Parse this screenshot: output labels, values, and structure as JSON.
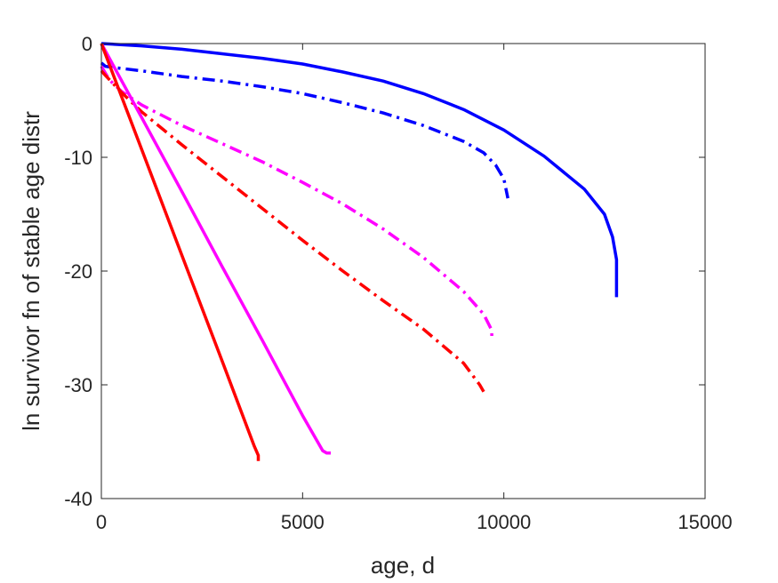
{
  "chart_data": {
    "type": "line",
    "title": "",
    "xlabel": "age, d",
    "ylabel": "ln survivor fn of stable age distr",
    "xlim": [
      0,
      15000
    ],
    "ylim": [
      -40,
      0
    ],
    "xticks": [
      0,
      5000,
      10000,
      15000
    ],
    "yticks": [
      0,
      -10,
      -20,
      -30,
      -40
    ],
    "grid": false,
    "box": true,
    "legend": "none",
    "series": [
      {
        "color": "#0000ff",
        "style": "solid",
        "x": [
          0,
          1000,
          2000,
          3000,
          4000,
          5000,
          6000,
          7000,
          8000,
          9000,
          10000,
          11000,
          12000,
          12500,
          12700,
          12800,
          12800
        ],
        "y": [
          0,
          -0.2,
          -0.5,
          -0.9,
          -1.3,
          -1.8,
          -2.5,
          -3.3,
          -4.4,
          -5.8,
          -7.6,
          -9.9,
          -12.8,
          -15.0,
          -17.0,
          -19.0,
          -22.3
        ]
      },
      {
        "color": "#0000ff",
        "style": "dashdot",
        "x": [
          0,
          100,
          300,
          1000,
          2000,
          3000,
          4000,
          5000,
          6000,
          7000,
          8000,
          9000,
          9500,
          9800,
          10000,
          10100
        ],
        "y": [
          -1.7,
          -2.0,
          -2.1,
          -2.4,
          -2.9,
          -3.3,
          -3.8,
          -4.4,
          -5.2,
          -6.1,
          -7.2,
          -8.6,
          -9.6,
          -10.7,
          -11.9,
          -13.6
        ]
      },
      {
        "color": "#ff00ff",
        "style": "dashdot",
        "x": [
          0,
          200,
          500,
          1000,
          2000,
          3000,
          4000,
          5000,
          6000,
          7000,
          8000,
          9000,
          9500,
          9700,
          9700
        ],
        "y": [
          -2.0,
          -3.2,
          -4.2,
          -5.4,
          -7.2,
          -8.8,
          -10.4,
          -12.2,
          -14.1,
          -16.3,
          -18.8,
          -21.8,
          -23.8,
          -25.2,
          -26.0
        ]
      },
      {
        "color": "#ff0000",
        "style": "dashdot",
        "x": [
          0,
          100,
          500,
          1000,
          2000,
          3000,
          4000,
          5000,
          6000,
          7000,
          8000,
          9000,
          9400,
          9500
        ],
        "y": [
          -2.4,
          -2.8,
          -4.3,
          -6.0,
          -8.9,
          -11.7,
          -14.5,
          -17.3,
          -20.0,
          -22.6,
          -25.1,
          -28.1,
          -30.0,
          -30.6
        ]
      },
      {
        "color": "#ff00ff",
        "style": "solid",
        "x": [
          0,
          1000,
          2000,
          3000,
          4000,
          5000,
          5500,
          5600,
          5700
        ],
        "y": [
          0,
          -6.5,
          -13.0,
          -19.6,
          -26.1,
          -32.7,
          -35.8,
          -36.0,
          -36.0
        ]
      },
      {
        "color": "#ff0000",
        "style": "solid",
        "x": [
          0,
          1000,
          2000,
          3000,
          3800,
          3900,
          3900
        ],
        "y": [
          0,
          -9.3,
          -18.6,
          -27.9,
          -35.4,
          -36.2,
          -36.7
        ]
      }
    ]
  }
}
